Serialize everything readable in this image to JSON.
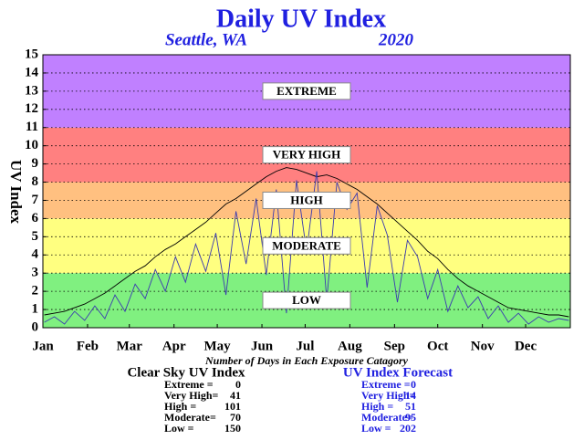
{
  "chart_data": {
    "type": "line",
    "title": "Daily UV Index",
    "location": "Seattle, WA",
    "year": "2020",
    "ylabel": "UV Index",
    "xlabel": "Number of Days in Each Exposure Catagory",
    "ylim": [
      0,
      15
    ],
    "yticks": [
      0,
      1,
      2,
      3,
      4,
      5,
      6,
      7,
      8,
      9,
      10,
      11,
      12,
      13,
      14,
      15
    ],
    "grid": true,
    "xlim": [
      0,
      366
    ],
    "xticks": [
      {
        "value": 0,
        "label": "Jan"
      },
      {
        "value": 31,
        "label": "Feb"
      },
      {
        "value": 60,
        "label": "Mar"
      },
      {
        "value": 91,
        "label": "Apr"
      },
      {
        "value": 121,
        "label": "May"
      },
      {
        "value": 152,
        "label": "Jun"
      },
      {
        "value": 182,
        "label": "Jul"
      },
      {
        "value": 213,
        "label": "Aug"
      },
      {
        "value": 244,
        "label": "Sep"
      },
      {
        "value": 274,
        "label": "Oct"
      },
      {
        "value": 305,
        "label": "Nov"
      },
      {
        "value": 335,
        "label": "Dec"
      }
    ],
    "bands": [
      {
        "label": "LOW",
        "from": 0,
        "to": 3,
        "color": "#80f080"
      },
      {
        "label": "MODERATE",
        "from": 3,
        "to": 6,
        "color": "#ffff80"
      },
      {
        "label": "HIGH",
        "from": 6,
        "to": 8,
        "color": "#ffc080"
      },
      {
        "label": "VERY HIGH",
        "from": 8,
        "to": 11,
        "color": "#ff8080"
      },
      {
        "label": "EXTREME",
        "from": 11,
        "to": 15,
        "color": "#c080ff"
      }
    ],
    "x": [
      1,
      8,
      15,
      22,
      29,
      36,
      43,
      50,
      57,
      64,
      71,
      78,
      85,
      92,
      99,
      106,
      113,
      120,
      127,
      134,
      141,
      148,
      155,
      162,
      169,
      176,
      183,
      190,
      197,
      204,
      211,
      218,
      225,
      232,
      239,
      246,
      253,
      260,
      267,
      274,
      281,
      288,
      295,
      302,
      309,
      316,
      323,
      330,
      337,
      344,
      351,
      358,
      365
    ],
    "series": [
      {
        "name": "Clear Sky UV Index",
        "color": "#000000",
        "values": [
          0.7,
          0.8,
          0.9,
          1.1,
          1.3,
          1.6,
          1.9,
          2.3,
          2.7,
          3.1,
          3.4,
          3.9,
          4.3,
          4.6,
          5.0,
          5.4,
          5.8,
          6.3,
          6.8,
          7.1,
          7.5,
          7.9,
          8.3,
          8.6,
          8.8,
          8.7,
          8.5,
          8.3,
          8.4,
          8.2,
          7.9,
          7.6,
          7.2,
          6.8,
          6.3,
          5.8,
          5.3,
          4.8,
          4.2,
          3.8,
          3.2,
          2.7,
          2.3,
          2.0,
          1.7,
          1.4,
          1.1,
          1.0,
          0.9,
          0.8,
          0.7,
          0.7,
          0.6
        ]
      },
      {
        "name": "UV Index Forecast",
        "color": "#3a3ab0",
        "values": [
          0.3,
          0.6,
          0.2,
          0.9,
          0.4,
          1.2,
          0.5,
          1.8,
          0.9,
          2.4,
          1.6,
          3.2,
          2.0,
          3.9,
          2.5,
          4.6,
          3.1,
          5.2,
          1.8,
          6.4,
          3.5,
          7.1,
          2.9,
          7.6,
          0.8,
          8.1,
          4.2,
          8.6,
          1.5,
          8.0,
          6.5,
          7.4,
          2.2,
          6.7,
          5.1,
          1.4,
          4.8,
          3.9,
          1.6,
          3.2,
          0.9,
          2.3,
          1.1,
          1.7,
          0.5,
          1.2,
          0.3,
          0.8,
          0.2,
          0.6,
          0.3,
          0.5,
          0.4
        ]
      }
    ],
    "stats": [
      {
        "title": "Clear Sky UV Index",
        "color": "#000000",
        "rows": [
          {
            "label": "Extreme =",
            "value": 0
          },
          {
            "label": "Very High=",
            "value": 41
          },
          {
            "label": "High =",
            "value": 101
          },
          {
            "label": "Moderate=",
            "value": 70
          },
          {
            "label": "Low =",
            "value": 150
          }
        ]
      },
      {
        "title": "UV Index Forecast",
        "color": "#2020e0",
        "rows": [
          {
            "label": "Extreme =",
            "value": 0
          },
          {
            "label": "Very High=",
            "value": 14
          },
          {
            "label": "High =",
            "value": 51
          },
          {
            "label": "Moderate=",
            "value": 95
          },
          {
            "label": "Low =",
            "value": 202
          }
        ]
      }
    ]
  }
}
